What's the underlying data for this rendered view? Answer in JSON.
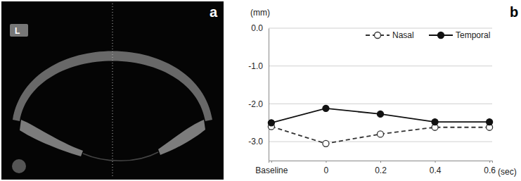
{
  "image_panel": {
    "label": "a",
    "eye": "L"
  },
  "chart_data": {
    "type": "line",
    "panel_label": "b",
    "x_label": "(sec)",
    "y_label": "(mm)",
    "categories": [
      "Baseline",
      "0",
      "0.2",
      "0.4",
      "0.6"
    ],
    "series": [
      {
        "name": "Nasal",
        "color": "#333333",
        "marker": "open-circle",
        "line_style": "dashed",
        "values": [
          -2.6,
          -3.05,
          -2.8,
          -2.62,
          -2.62
        ]
      },
      {
        "name": "Temporal",
        "color": "#111111",
        "marker": "filled-circle",
        "line_style": "solid",
        "values": [
          -2.5,
          -2.12,
          -2.27,
          -2.48,
          -2.48
        ]
      }
    ],
    "ylim": [
      -3.5,
      0
    ],
    "yticks": [
      {
        "value": 0,
        "label": "0.0"
      },
      {
        "value": -1,
        "label": "-1.0"
      },
      {
        "value": -2,
        "label": "-2.0"
      },
      {
        "value": -3,
        "label": "-3.0"
      }
    ],
    "grid": true,
    "legend": "top-right"
  }
}
